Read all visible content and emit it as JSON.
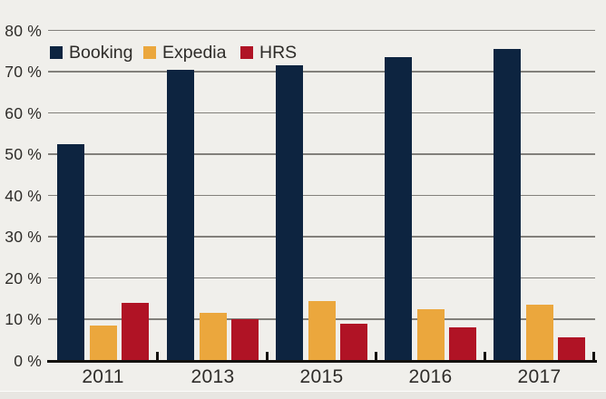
{
  "page": {
    "background": "#f0efeb"
  },
  "colors": {
    "axis": "#14120f",
    "gridline": "#82807b",
    "label_text": "#2e2c29"
  },
  "chart_data": {
    "type": "bar",
    "title": "",
    "xlabel": "",
    "ylabel": "",
    "categories": [
      "2011",
      "2013",
      "2015",
      "2016",
      "2017"
    ],
    "series": [
      {
        "name": "Booking",
        "color": "#0d2440",
        "values": [
          52.5,
          70.5,
          71.5,
          73.5,
          75.5
        ]
      },
      {
        "name": "Expedia",
        "color": "#eba73d",
        "values": [
          8.5,
          11.5,
          14.5,
          12.5,
          13.5
        ]
      },
      {
        "name": "HRS",
        "color": "#b01325",
        "values": [
          14,
          10,
          9,
          8,
          5.5
        ]
      }
    ],
    "ylim": [
      0,
      80
    ],
    "ytick_step": 10,
    "ytick_labels": [
      "0 %",
      "10 %",
      "20 %",
      "30 %",
      "40 %",
      "50 %",
      "60 %",
      "70 %",
      "80 %"
    ],
    "grid": true,
    "legend": {
      "position": "top-left-inside",
      "entries": [
        "Booking",
        "Expedia",
        "HRS"
      ]
    }
  }
}
